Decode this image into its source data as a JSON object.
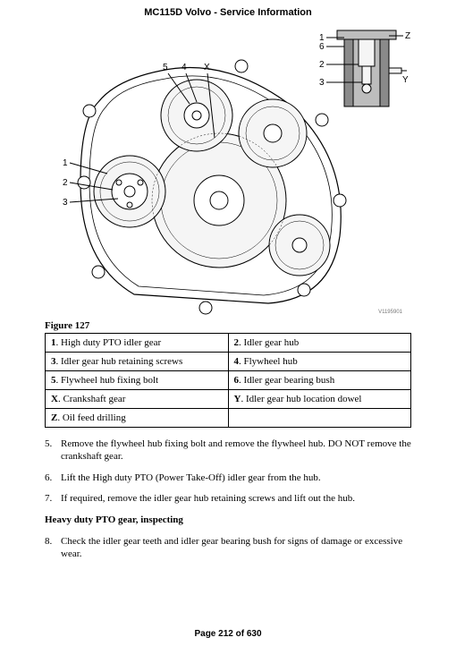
{
  "header": "MC115D Volvo - Service Information",
  "figure": {
    "caption": "Figure 127",
    "id_mark": "V1195901",
    "main_callouts": [
      "1",
      "2",
      "3",
      "4",
      "5",
      "X"
    ],
    "inset_callouts": [
      "1",
      "2",
      "3",
      "6",
      "Y",
      "Z"
    ],
    "stroke": "#000000",
    "fill_light": "#f5f5f5",
    "fill_mid": "#bdbdbd",
    "fill_dark": "#8a8a8a"
  },
  "legend": {
    "rows": [
      [
        {
          "k": "1",
          "v": "High duty PTO idler gear"
        },
        {
          "k": "2",
          "v": "Idler gear hub"
        }
      ],
      [
        {
          "k": "3",
          "v": "Idler gear hub retaining screws"
        },
        {
          "k": "4",
          "v": "Flywheel hub"
        }
      ],
      [
        {
          "k": "5",
          "v": "Flywheel hub fixing bolt"
        },
        {
          "k": "6",
          "v": "Idler gear bearing bush"
        }
      ],
      [
        {
          "k": "X",
          "v": "Crankshaft gear"
        },
        {
          "k": "Y",
          "v": "Idler gear hub location dowel"
        }
      ],
      [
        {
          "k": "Z",
          "v": "Oil feed drilling"
        },
        null
      ]
    ]
  },
  "steps_a": [
    {
      "n": "5.",
      "t": "Remove the flywheel hub fixing bolt and remove the flywheel hub. DO NOT remove the crankshaft gear."
    },
    {
      "n": "6.",
      "t": "Lift the High duty PTO (Power Take-Off) idler gear from the hub."
    },
    {
      "n": "7.",
      "t": "If required, remove the idler gear hub retaining screws and lift out the hub."
    }
  ],
  "section_heading": "Heavy duty PTO gear, inspecting",
  "steps_b": [
    {
      "n": "8.",
      "t": "Check the idler gear teeth and idler gear bearing bush for signs of damage or excessive wear."
    }
  ],
  "footer": "Page 212 of 630"
}
